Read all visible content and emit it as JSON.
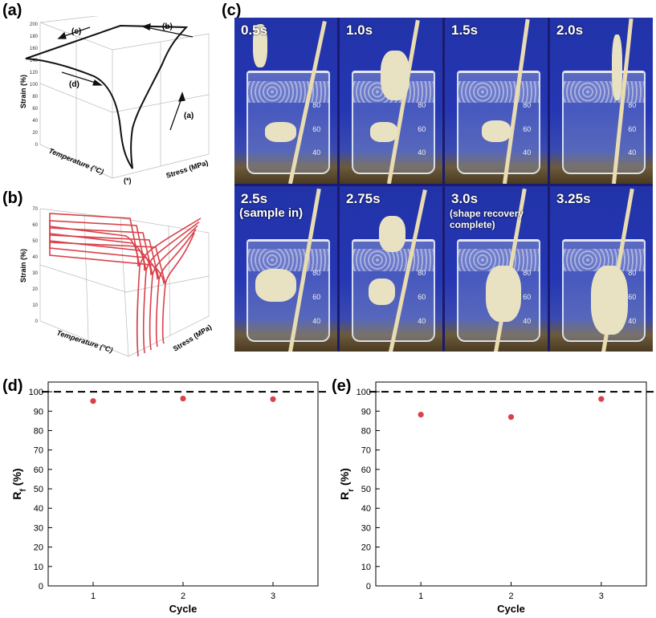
{
  "panel_labels": {
    "a": "(a)",
    "b": "(b)",
    "c": "(c)",
    "d": "(d)",
    "e": "(e)"
  },
  "panel_a": {
    "zlabel": "Strain (%)",
    "xlabel": "Temperature (°C)",
    "ylabel": "Stress (MPa)",
    "zticks": [
      "0",
      "20",
      "40",
      "60",
      "80",
      "100",
      "120",
      "140",
      "160",
      "180",
      "200"
    ],
    "step_labels": {
      "a": "(a)",
      "b": "(b)",
      "c": "(c)",
      "d": "(d)",
      "start": "(*)"
    },
    "line_color": "#111111"
  },
  "panel_b": {
    "zlabel": "Strain (%)",
    "xlabel": "Temperature (°C)",
    "ylabel": "Stress (MPa)",
    "zticks": [
      "0",
      "10",
      "20",
      "30",
      "40",
      "50",
      "60",
      "70"
    ],
    "line_color": "#d9414a",
    "cycles": 5
  },
  "panel_c": {
    "frames": [
      {
        "time": "0.5s",
        "sub": ""
      },
      {
        "time": "1.0s",
        "sub": ""
      },
      {
        "time": "1.5s",
        "sub": ""
      },
      {
        "time": "2.0s",
        "sub": ""
      },
      {
        "time": "2.5s",
        "sub": "(sample in)"
      },
      {
        "time": "2.75s",
        "sub": ""
      },
      {
        "time": "3.0s",
        "sub": "(shape recovery complete)"
      },
      {
        "time": "3.25s",
        "sub": ""
      }
    ],
    "beaker_marks": [
      "80",
      "60",
      "40"
    ]
  },
  "chart_data": [
    {
      "type": "scatter",
      "panel": "(d)",
      "xlabel": "Cycle",
      "ylabel": "R_f (%)",
      "ylabel_main": "R",
      "ylabel_sub": "f",
      "ylabel_unit": " (%)",
      "x": [
        1,
        2,
        3
      ],
      "y": [
        95.2,
        96.5,
        96.2
      ],
      "xticks": [
        "1",
        "2",
        "3"
      ],
      "yticks": [
        "0",
        "10",
        "20",
        "30",
        "40",
        "50",
        "60",
        "70",
        "80",
        "90",
        "100"
      ],
      "xlim": [
        0.5,
        3.5
      ],
      "ylim": [
        0,
        105
      ],
      "reference_line": 100,
      "marker_color": "#d9414a"
    },
    {
      "type": "scatter",
      "panel": "(e)",
      "xlabel": "Cycle",
      "ylabel": "R_r (%)",
      "ylabel_main": "R",
      "ylabel_sub": "r",
      "ylabel_unit": " (%)",
      "x": [
        1,
        2,
        3
      ],
      "y": [
        88.2,
        87.0,
        96.3
      ],
      "xticks": [
        "1",
        "2",
        "3"
      ],
      "yticks": [
        "0",
        "10",
        "20",
        "30",
        "40",
        "50",
        "60",
        "70",
        "80",
        "90",
        "100"
      ],
      "xlim": [
        0.5,
        3.5
      ],
      "ylim": [
        0,
        105
      ],
      "reference_line": 100,
      "marker_color": "#d9414a"
    }
  ]
}
